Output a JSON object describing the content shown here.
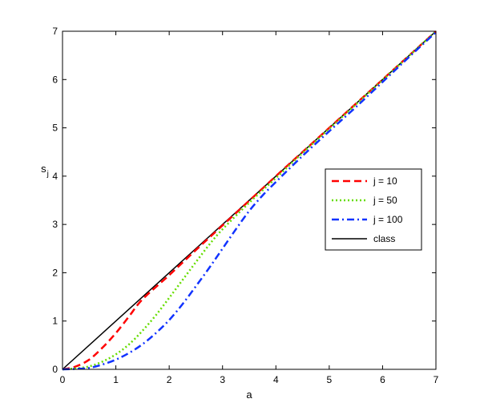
{
  "chart_data": {
    "type": "line",
    "title": "",
    "xlabel": "a",
    "ylabel_main": "s",
    "ylabel_sub": "j",
    "xlim": [
      0,
      7
    ],
    "ylim": [
      0,
      7
    ],
    "xticks": [
      0,
      1,
      2,
      3,
      4,
      5,
      6,
      7
    ],
    "yticks": [
      0,
      1,
      2,
      3,
      4,
      5,
      6,
      7
    ],
    "grid": false,
    "legend_position": "center-right",
    "series": [
      {
        "name": "j = 10",
        "color": "#ff0000",
        "style": "dashed",
        "x": [
          0,
          0.25,
          0.5,
          0.75,
          1.0,
          1.25,
          1.5,
          2.0,
          2.5,
          3.0,
          4.0,
          5.0,
          6.0,
          7.0
        ],
        "y": [
          0,
          0.06,
          0.2,
          0.45,
          0.75,
          1.1,
          1.45,
          1.95,
          2.47,
          2.98,
          4.0,
          5.0,
          6.0,
          7.0
        ]
      },
      {
        "name": "j = 50",
        "color": "#66dd00",
        "style": "dotted",
        "x": [
          0,
          0.25,
          0.5,
          0.75,
          1.0,
          1.25,
          1.5,
          1.75,
          2.0,
          2.25,
          2.5,
          2.75,
          3.0,
          3.5,
          4.0,
          4.5,
          5.0,
          6.0,
          7.0
        ],
        "y": [
          0,
          0.02,
          0.06,
          0.16,
          0.31,
          0.52,
          0.8,
          1.12,
          1.48,
          1.85,
          2.22,
          2.58,
          2.9,
          3.45,
          3.96,
          4.48,
          4.98,
          5.99,
          7.0
        ]
      },
      {
        "name": "j = 100",
        "color": "#1133ff",
        "style": "dashdot",
        "x": [
          0,
          0.25,
          0.5,
          0.75,
          1.0,
          1.25,
          1.5,
          1.75,
          2.0,
          2.25,
          2.5,
          2.75,
          3.0,
          3.25,
          3.5,
          3.75,
          4.0,
          4.5,
          5.0,
          5.5,
          6.0,
          6.5,
          7.0
        ],
        "y": [
          0,
          0.01,
          0.03,
          0.1,
          0.2,
          0.34,
          0.52,
          0.75,
          1.02,
          1.35,
          1.72,
          2.1,
          2.5,
          2.9,
          3.28,
          3.6,
          3.88,
          4.42,
          4.93,
          5.43,
          5.95,
          6.47,
          6.98
        ]
      },
      {
        "name": "class",
        "color": "#000000",
        "style": "solid",
        "x": [
          0,
          7
        ],
        "y": [
          0,
          7
        ]
      }
    ]
  }
}
